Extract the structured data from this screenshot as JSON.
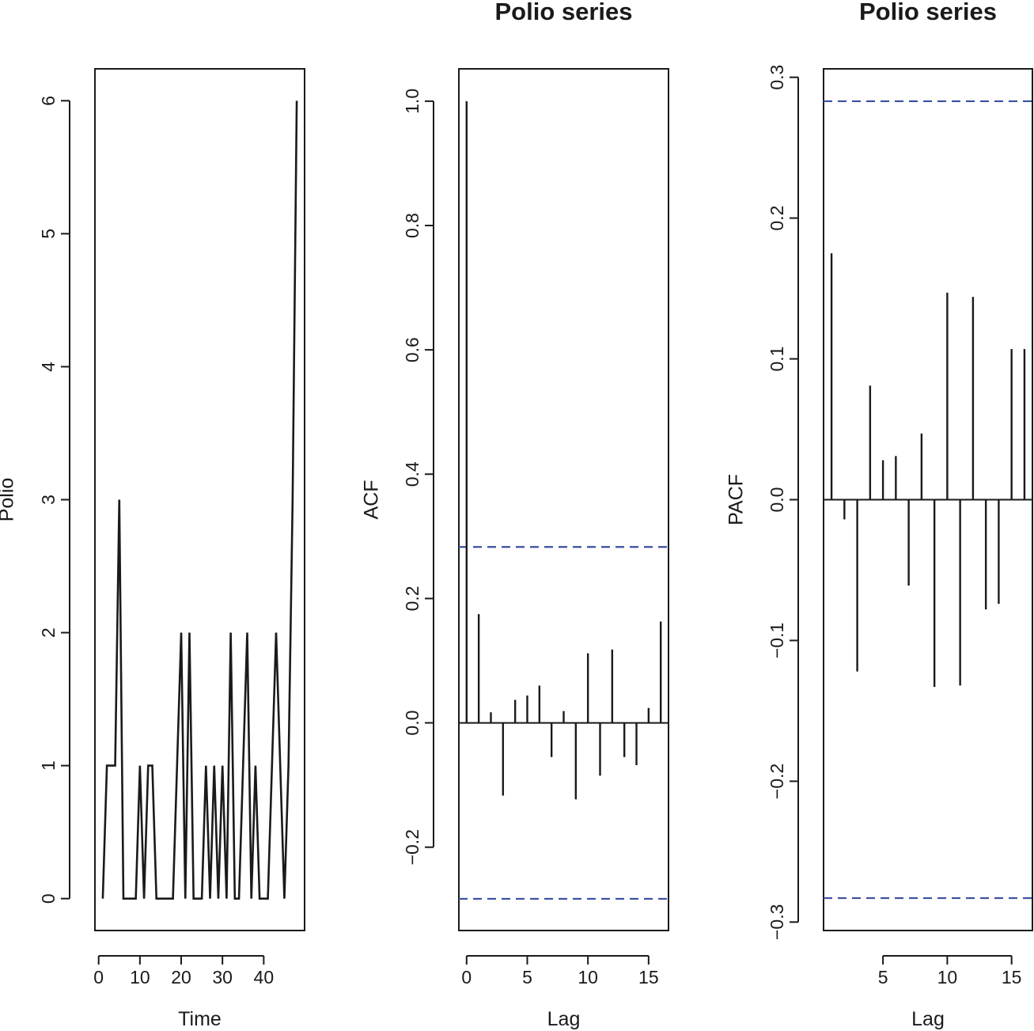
{
  "chart_data": [
    {
      "type": "line",
      "title": "",
      "xlabel": "Time",
      "ylabel": "Polio",
      "xlim": [
        -0.9,
        49.9
      ],
      "ylim": [
        -0.24,
        6.24
      ],
      "xticks": [
        0,
        10,
        20,
        30,
        40
      ],
      "yticks": [
        0,
        1,
        2,
        3,
        4,
        5,
        6
      ],
      "grid": false,
      "x": [
        1,
        2,
        3,
        4,
        5,
        6,
        7,
        8,
        9,
        10,
        11,
        12,
        13,
        14,
        15,
        16,
        17,
        18,
        19,
        20,
        21,
        22,
        23,
        24,
        25,
        26,
        27,
        28,
        29,
        30,
        31,
        32,
        33,
        34,
        35,
        36,
        37,
        38,
        39,
        40,
        41,
        42,
        43,
        44,
        45,
        46,
        47,
        48
      ],
      "y": [
        0,
        1,
        1,
        1,
        3,
        0,
        0,
        0,
        0,
        1,
        0,
        1,
        1,
        0,
        0,
        0,
        0,
        0,
        1,
        2,
        0,
        2,
        0,
        0,
        0,
        1,
        0,
        1,
        0,
        1,
        0,
        2,
        0,
        0,
        1,
        2,
        0,
        1,
        0,
        0,
        0,
        1,
        2,
        1,
        0,
        1,
        3,
        6
      ],
      "color": "#1a1a1a"
    },
    {
      "type": "bar",
      "title": "Polio series",
      "xlabel": "Lag",
      "ylabel": "ACF",
      "xlim": [
        -0.64,
        16.64
      ],
      "ylim": [
        -0.334,
        1.052
      ],
      "xticks": [
        0,
        5,
        10,
        15
      ],
      "yticks": [
        -0.2,
        0.0,
        0.2,
        0.4,
        0.6,
        0.8,
        1.0
      ],
      "ytick_labels": [
        "−0.2",
        "0.0",
        "0.2",
        "0.4",
        "0.6",
        "0.8",
        "1.0"
      ],
      "grid": false,
      "lags": [
        0,
        1,
        2,
        3,
        4,
        5,
        6,
        7,
        8,
        9,
        10,
        11,
        12,
        13,
        14,
        15,
        16
      ],
      "values": [
        1.0,
        0.175,
        0.017,
        -0.117,
        0.037,
        0.044,
        0.06,
        -0.055,
        0.019,
        -0.123,
        0.112,
        -0.085,
        0.118,
        -0.055,
        -0.068,
        0.024,
        0.163
      ],
      "confidence_bounds": [
        0.283,
        -0.283
      ],
      "bar_color": "#1a1a1a",
      "bound_color": "#3b4fa0"
    },
    {
      "type": "bar",
      "title": "Polio series",
      "xlabel": "Lag",
      "ylabel": "PACF",
      "xlim": [
        0.38,
        16.62
      ],
      "ylim": [
        -0.306,
        0.306
      ],
      "xticks": [
        5,
        10,
        15
      ],
      "yticks": [
        -0.3,
        -0.2,
        -0.1,
        0.0,
        0.1,
        0.2,
        0.3
      ],
      "ytick_labels": [
        "−0.3",
        "−0.2",
        "−0.1",
        "0.0",
        "0.1",
        "0.2",
        "0.3"
      ],
      "grid": false,
      "lags": [
        1,
        2,
        3,
        4,
        5,
        6,
        7,
        8,
        9,
        10,
        11,
        12,
        13,
        14,
        15,
        16
      ],
      "values": [
        0.175,
        -0.014,
        -0.122,
        0.081,
        0.028,
        0.031,
        -0.061,
        0.047,
        -0.133,
        0.147,
        -0.132,
        0.144,
        -0.078,
        -0.074,
        0.107,
        0.107
      ],
      "confidence_bounds": [
        0.283,
        -0.283
      ],
      "bar_color": "#1a1a1a",
      "bound_color": "#3b4fa0"
    }
  ]
}
